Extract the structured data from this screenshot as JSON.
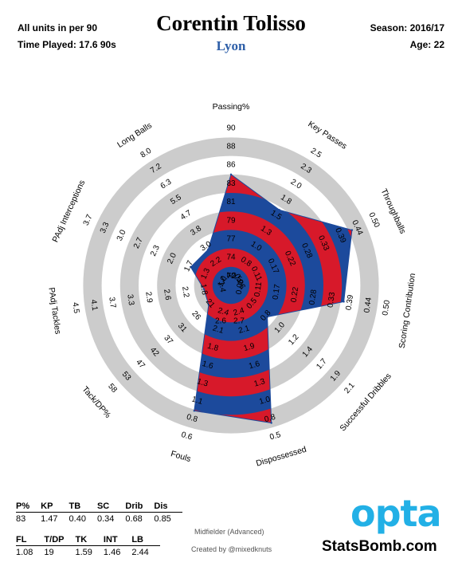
{
  "header": {
    "units_note": "All units in per 90",
    "time_played": "Time Played: 17.6 90s",
    "player": "Corentin Tolisso",
    "team": "Lyon",
    "season": "Season: 2016/17",
    "age": "Age: 22"
  },
  "colors": {
    "red": "#d7192a",
    "blue": "#1c4a9c",
    "ring_gray": "#cccccc",
    "team_blue": "#2e5fa8",
    "opta_blue": "#22b0e6"
  },
  "chart_data": {
    "type": "radar",
    "scale": "rings",
    "grid": true,
    "axes": [
      {
        "label": "Passing%",
        "ticks": [
          "72",
          "74",
          "77",
          "79",
          "81",
          "83",
          "86",
          "88",
          "90"
        ],
        "value": 83,
        "reversed": false
      },
      {
        "label": "Key Passes",
        "ticks": [
          "0.5",
          "0.8",
          "1.0",
          "1.3",
          "1.5",
          "1.8",
          "2.0",
          "2.3",
          "2.5"
        ],
        "value": 1.47,
        "reversed": false
      },
      {
        "label": "Throughballs",
        "ticks": [
          "0.06",
          "0.11",
          "0.17",
          "0.22",
          "0.28",
          "0.33",
          "0.39",
          "0.44",
          "0.50"
        ],
        "value": 0.4,
        "reversed": false
      },
      {
        "label": "Scoring Contribution",
        "ticks": [
          "0.06",
          "0.11",
          "0.17",
          "0.22",
          "0.28",
          "0.33",
          "0.39",
          "0.44",
          "0.50"
        ],
        "value": 0.34,
        "reversed": false
      },
      {
        "label": "Successful Dribbles",
        "ticks": [
          "0.5",
          "0.8",
          "1.0",
          "1.2",
          "1.4",
          "1.7",
          "1.9",
          "2.1"
        ],
        "value": 0.68,
        "reversed": false
      },
      {
        "label": "Dispossessed",
        "ticks": [
          "2.4",
          "2.1",
          "1.9",
          "1.6",
          "1.3",
          "1.0",
          "0.8",
          "0.5"
        ],
        "value": 0.85,
        "reversed": true
      },
      {
        "label": "Fouls",
        "ticks": [
          "2.4",
          "2.1",
          "1.8",
          "1.6",
          "1.3",
          "1.1",
          "0.8",
          "0.6"
        ],
        "value": 1.08,
        "reversed": true
      },
      {
        "label": "Tack/DP%",
        "ticks": [
          "21",
          "26",
          "31",
          "37",
          "42",
          "47",
          "53",
          "58"
        ],
        "value": 19,
        "reversed": false
      },
      {
        "label": "PAdj Tackles",
        "ticks": [
          "1.4",
          "1.8",
          "2.2",
          "2.6",
          "2.9",
          "3.3",
          "3.7",
          "4.1",
          "4.5"
        ],
        "value": 1.59,
        "reversed": false
      },
      {
        "label": "PAdj Interceptions",
        "ticks": [
          "1.0",
          "1.3",
          "1.7",
          "2.0",
          "2.3",
          "2.7",
          "3.0",
          "3.3",
          "3.7"
        ],
        "value": 1.46,
        "reversed": false
      },
      {
        "label": "Long Balls",
        "ticks": [
          "1.4",
          "2.2",
          "3.0",
          "3.8",
          "4.7",
          "5.5",
          "6.3",
          "7.2",
          "8.0"
        ],
        "value": 2.44,
        "reversed": false
      }
    ],
    "center_tick_labels": [
      "2.6",
      "2.7"
    ]
  },
  "table": {
    "top": {
      "headers": [
        "P%",
        "KP",
        "TB",
        "SC",
        "Drib",
        "Dis"
      ],
      "values": [
        "83",
        "1.47",
        "0.40",
        "0.34",
        "0.68",
        "0.85"
      ]
    },
    "bottom": {
      "headers": [
        "FL",
        "T/DP",
        "TK",
        "INT",
        "LB"
      ],
      "values": [
        "1.08",
        "19",
        "1.59",
        "1.46",
        "2.44"
      ]
    }
  },
  "footer": {
    "position": "Midfielder (Advanced)",
    "credit": "Created by @mixedknuts",
    "logo_text": "opta",
    "brand": "StatsBomb.com"
  }
}
